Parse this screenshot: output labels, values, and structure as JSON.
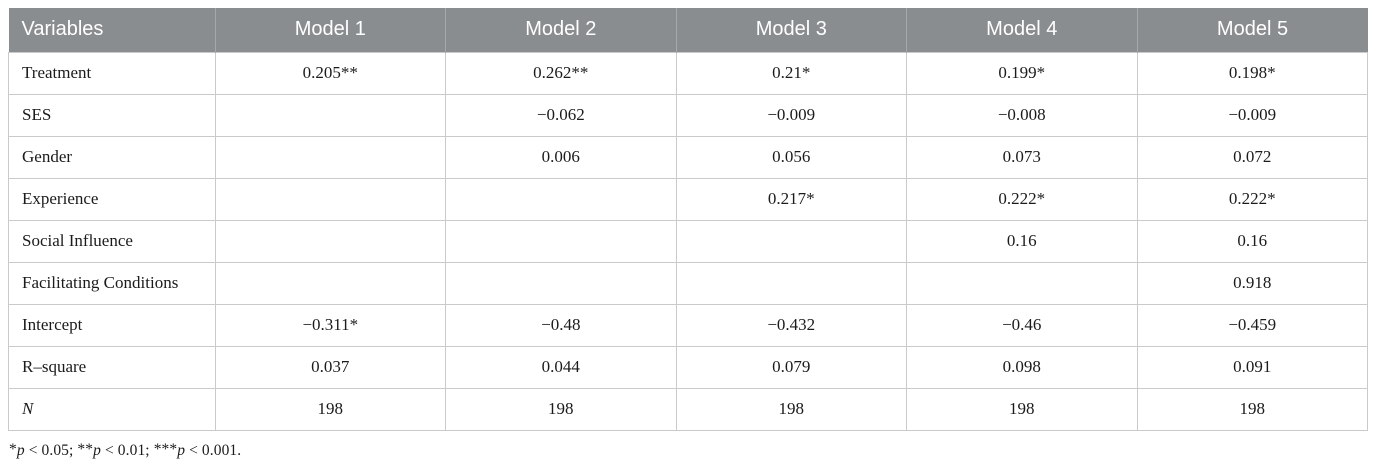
{
  "table": {
    "columns": [
      "Variables",
      "Model 1",
      "Model 2",
      "Model 3",
      "Model 4",
      "Model 5"
    ],
    "rows": [
      {
        "variable": "Treatment",
        "italic": false,
        "values": [
          "0.205**",
          "0.262**",
          "0.21*",
          "0.199*",
          "0.198*"
        ]
      },
      {
        "variable": "SES",
        "italic": false,
        "values": [
          "",
          "−0.062",
          "−0.009",
          "−0.008",
          "−0.009"
        ]
      },
      {
        "variable": "Gender",
        "italic": false,
        "values": [
          "",
          "0.006",
          "0.056",
          "0.073",
          "0.072"
        ]
      },
      {
        "variable": "Experience",
        "italic": false,
        "values": [
          "",
          "",
          "0.217*",
          "0.222*",
          "0.222*"
        ]
      },
      {
        "variable": "Social Influence",
        "italic": false,
        "values": [
          "",
          "",
          "",
          "0.16",
          "0.16"
        ]
      },
      {
        "variable": "Facilitating Conditions",
        "italic": false,
        "values": [
          "",
          "",
          "",
          "",
          "0.918"
        ]
      },
      {
        "variable": "Intercept",
        "italic": false,
        "values": [
          "−0.311*",
          "−0.48",
          "−0.432",
          "−0.46",
          "−0.459"
        ]
      },
      {
        "variable": "R–square",
        "italic": false,
        "values": [
          "0.037",
          "0.044",
          "0.079",
          "0.098",
          "0.091"
        ]
      },
      {
        "variable": "N",
        "italic": true,
        "values": [
          "198",
          "198",
          "198",
          "198",
          "198"
        ]
      }
    ],
    "footnote": "*p < 0.05; **p < 0.01; ***p < 0.001.",
    "footnote_segments": [
      {
        "sup": "*"
      },
      {
        "i": "p"
      },
      {
        "t": " < 0.05; "
      },
      {
        "sup": "**"
      },
      {
        "i": "p"
      },
      {
        "t": " < 0.01; "
      },
      {
        "sup": "***"
      },
      {
        "i": "p"
      },
      {
        "t": " < 0.001."
      }
    ]
  },
  "colors": {
    "header_bg": "#8a8d8f",
    "header_text": "#ffffff",
    "header_divider": "#a6a8aa",
    "cell_border": "#c8cacb",
    "body_text": "#1b1b1b"
  }
}
